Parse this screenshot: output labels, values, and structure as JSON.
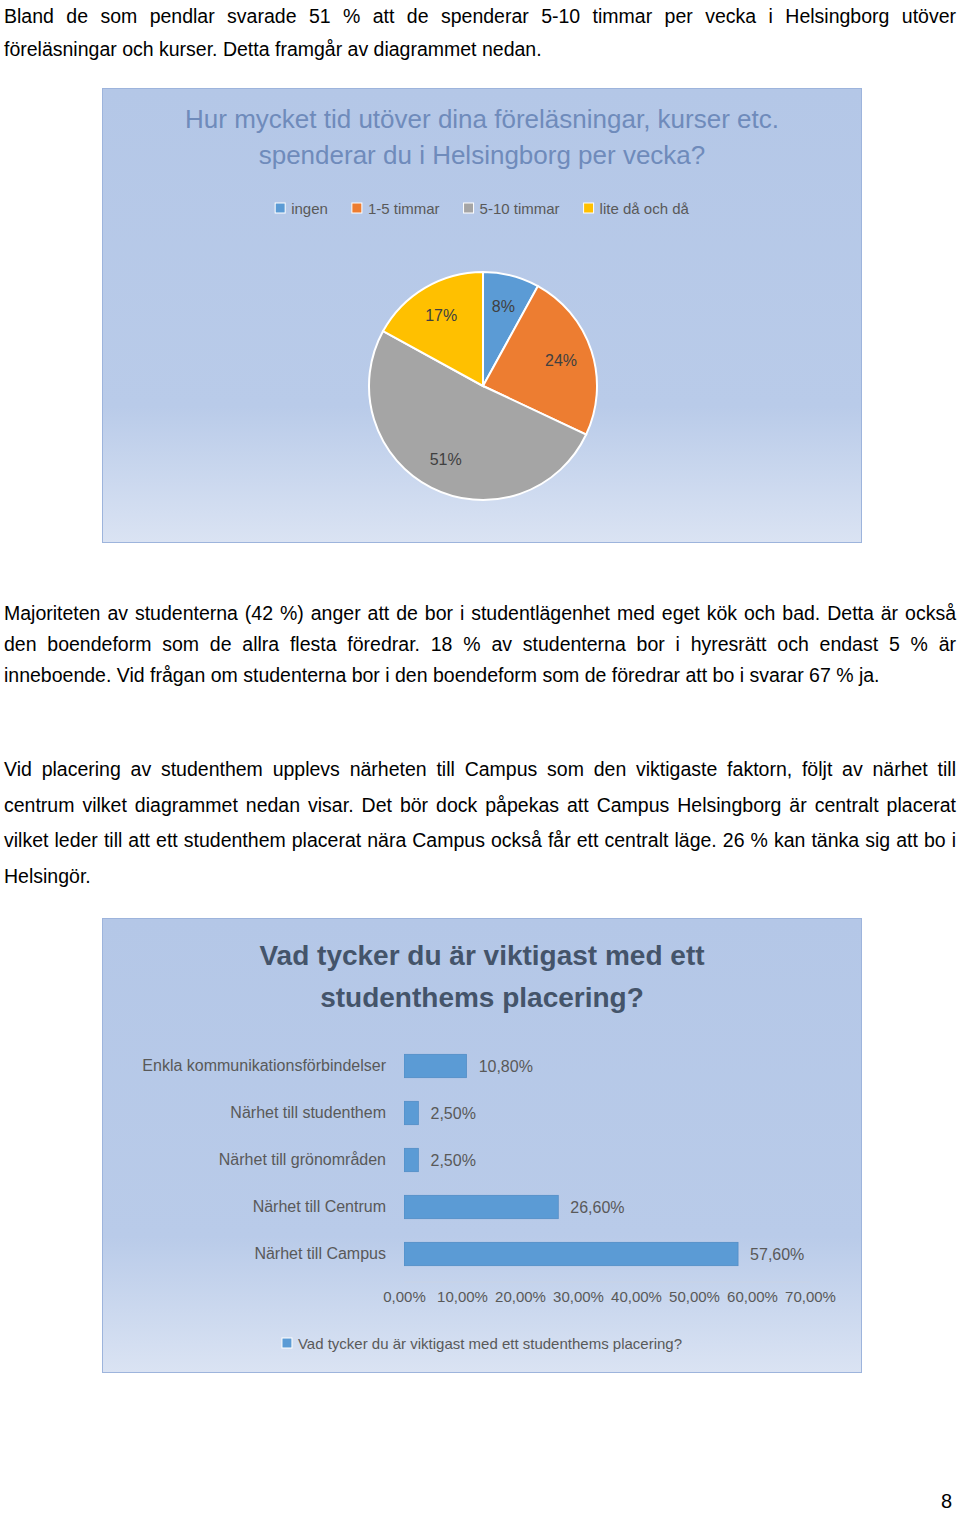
{
  "document": {
    "paragraphs": [
      "Bland de som pendlar svarade 51 % att de spenderar 5-10 timmar per vecka i Helsingborg utöver föreläsningar och kurser. Detta framgår av diagrammet nedan.",
      "Majoriteten av studenterna (42 %) anger att de bor i studentlägenhet med eget kök och bad. Detta är också den boendeform som de allra flesta föredrar. 18 % av studenterna bor i hyresrätt och endast 5 % är inneboende. Vid frågan om studenterna bor i den boendeform som de föredrar att bo i svarar 67 % ja.",
      "Vid placering av studenthem upplevs närheten till Campus som den viktigaste faktorn, följt av närhet till centrum vilket diagrammet nedan visar. Det bör dock påpekas att Campus Helsingborg är centralt placerat vilket leder till att ett studenthem placerat nära Campus också får ett centralt läge. 26 % kan tänka sig att bo i Helsingör."
    ],
    "page_number": 8
  },
  "chart_data": [
    {
      "type": "pie",
      "title": "Hur mycket tid utöver dina föreläsningar, kurser etc. spenderar du i Helsingborg per vecka?",
      "categories": [
        "ingen",
        "1-5 timmar",
        "5-10 timmar",
        "lite då och då"
      ],
      "values": [
        8,
        24,
        51,
        17
      ],
      "value_labels": [
        "8%",
        "24%",
        "51%",
        "17%"
      ],
      "colors": [
        "#5b9bd5",
        "#ed7d31",
        "#a5a5a5",
        "#ffc000"
      ],
      "data_labels": true,
      "legend": "top"
    },
    {
      "type": "bar",
      "title": "Vad tycker du är viktigast med ett studenthems placering?",
      "orientation": "horizontal",
      "categories": [
        "Enkla kommunikationsförbindelser",
        "Närhet till studenthem",
        "Närhet till grönområden",
        "Närhet till Centrum",
        "Närhet till Campus"
      ],
      "series": [
        {
          "name": "Vad tycker du är viktigast med ett studenthems placering?",
          "color": "#5b9bd5",
          "values": [
            10.8,
            2.5,
            2.5,
            26.6,
            57.6
          ],
          "value_labels": [
            "10,80%",
            "2,50%",
            "2,50%",
            "26,60%",
            "57,60%"
          ]
        }
      ],
      "xlim": [
        0,
        70
      ],
      "xticks": [
        {
          "value": 0,
          "label": "0,00%"
        },
        {
          "value": 10,
          "label": "10,00%"
        },
        {
          "value": 20,
          "label": "20,00%"
        },
        {
          "value": 30,
          "label": "30,00%"
        },
        {
          "value": 40,
          "label": "40,00%"
        },
        {
          "value": 50,
          "label": "50,00%"
        },
        {
          "value": 60,
          "label": "60,00%"
        },
        {
          "value": 70,
          "label": "70,00%"
        }
      ],
      "grid": false,
      "data_labels": true,
      "legend": "bottom"
    }
  ]
}
